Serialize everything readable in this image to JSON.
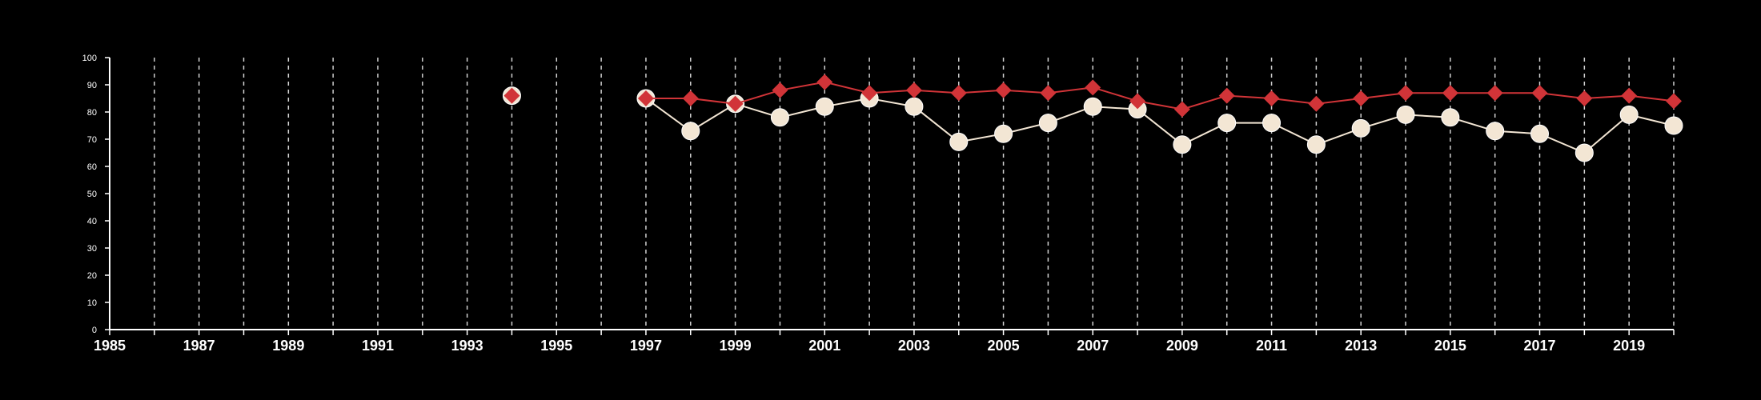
{
  "chart_data": {
    "type": "line",
    "title": "",
    "xlabel": "",
    "ylabel": "",
    "xlim": [
      1985,
      2020
    ],
    "ylim": [
      0,
      100
    ],
    "yticks": [
      0,
      10,
      20,
      30,
      40,
      50,
      60,
      70,
      80,
      90,
      100
    ],
    "xticks_labeled": [
      "1985",
      "1987",
      "1989",
      "1991",
      "1993",
      "1995",
      "1997",
      "1999",
      "2001",
      "2003",
      "2005",
      "2007",
      "2009",
      "2011",
      "2013",
      "2015",
      "2017",
      "2019"
    ],
    "xticks_labeled_values": [
      1985,
      1987,
      1989,
      1991,
      1993,
      1995,
      1997,
      1999,
      2001,
      2003,
      2005,
      2007,
      2009,
      2011,
      2013,
      2015,
      2017,
      2019
    ],
    "xticks_all": [
      1985,
      1986,
      1987,
      1988,
      1989,
      1990,
      1991,
      1992,
      1993,
      1994,
      1995,
      1996,
      1997,
      1998,
      1999,
      2000,
      2001,
      2002,
      2003,
      2004,
      2005,
      2006,
      2007,
      2008,
      2009,
      2010,
      2011,
      2012,
      2013,
      2014,
      2015,
      2016,
      2017,
      2018,
      2019,
      2020
    ],
    "grid": "vertical dashed",
    "legend": "none",
    "series": [
      {
        "marker": "circle",
        "color": "#f3e6d4",
        "points": [
          {
            "x": 1994,
            "y": 86
          },
          {
            "x": 1997,
            "y": 85
          },
          {
            "x": 1998,
            "y": 73
          },
          {
            "x": 1999,
            "y": 83
          },
          {
            "x": 2000,
            "y": 78
          },
          {
            "x": 2001,
            "y": 82
          },
          {
            "x": 2002,
            "y": 85
          },
          {
            "x": 2003,
            "y": 82
          },
          {
            "x": 2004,
            "y": 69
          },
          {
            "x": 2005,
            "y": 72
          },
          {
            "x": 2006,
            "y": 76
          },
          {
            "x": 2007,
            "y": 82
          },
          {
            "x": 2008,
            "y": 81
          },
          {
            "x": 2009,
            "y": 68
          },
          {
            "x": 2010,
            "y": 76
          },
          {
            "x": 2011,
            "y": 76
          },
          {
            "x": 2012,
            "y": 68
          },
          {
            "x": 2013,
            "y": 74
          },
          {
            "x": 2014,
            "y": 79
          },
          {
            "x": 2015,
            "y": 78
          },
          {
            "x": 2016,
            "y": 73
          },
          {
            "x": 2017,
            "y": 72
          },
          {
            "x": 2018,
            "y": 65
          },
          {
            "x": 2019,
            "y": 79
          },
          {
            "x": 2020,
            "y": 75
          }
        ]
      },
      {
        "marker": "diamond",
        "color": "#d13438",
        "points": [
          {
            "x": 1994,
            "y": 86
          },
          {
            "x": 1997,
            "y": 85
          },
          {
            "x": 1998,
            "y": 85
          },
          {
            "x": 1999,
            "y": 83
          },
          {
            "x": 2000,
            "y": 88
          },
          {
            "x": 2001,
            "y": 91
          },
          {
            "x": 2002,
            "y": 87
          },
          {
            "x": 2003,
            "y": 88
          },
          {
            "x": 2004,
            "y": 87
          },
          {
            "x": 2005,
            "y": 88
          },
          {
            "x": 2006,
            "y": 87
          },
          {
            "x": 2007,
            "y": 89
          },
          {
            "x": 2008,
            "y": 84
          },
          {
            "x": 2009,
            "y": 81
          },
          {
            "x": 2010,
            "y": 86
          },
          {
            "x": 2011,
            "y": 85
          },
          {
            "x": 2012,
            "y": 83
          },
          {
            "x": 2013,
            "y": 85
          },
          {
            "x": 2014,
            "y": 87
          },
          {
            "x": 2015,
            "y": 87
          },
          {
            "x": 2016,
            "y": 87
          },
          {
            "x": 2017,
            "y": 87
          },
          {
            "x": 2018,
            "y": 85
          },
          {
            "x": 2019,
            "y": 86
          },
          {
            "x": 2020,
            "y": 84
          }
        ]
      }
    ]
  }
}
